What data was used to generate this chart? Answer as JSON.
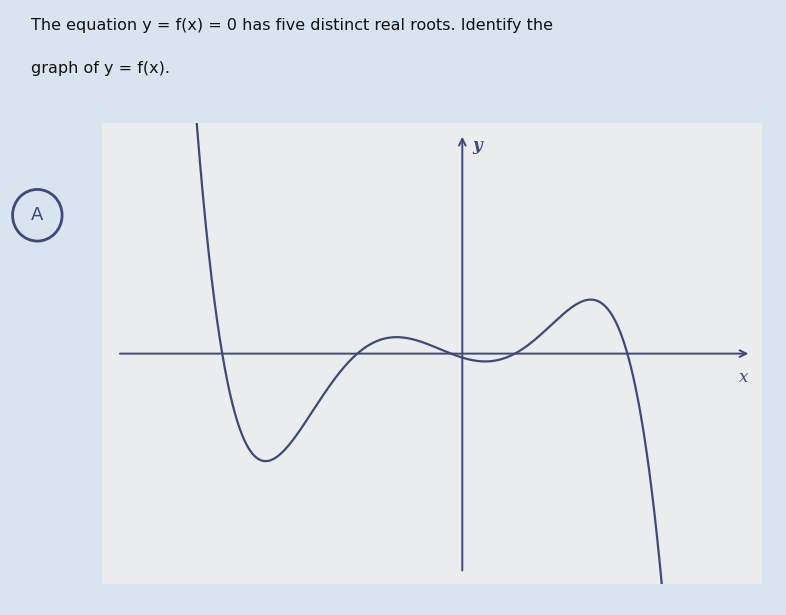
{
  "title_line1": "The equation ",
  "title_math": "y = f(x) = 0",
  "title_line1b": " has five distinct real roots. Identify the",
  "title_line2": "graph of ",
  "title_math2": "y = f(x)",
  "title_line2b": ".",
  "label_A": "A",
  "xlabel": "x",
  "ylabel": "y",
  "curve_color": "#3d4a7a",
  "axis_color": "#3d4a7a",
  "bg_color": "#d8e4f0",
  "plot_bg_color": "#eaecee",
  "title_color": "#111111",
  "figsize": [
    7.86,
    6.15
  ],
  "dpi": 100,
  "roots": [
    -3.2,
    -1.4,
    -0.15,
    0.7,
    2.2
  ],
  "x_start": -4.3,
  "x_end": 3.5,
  "y_scale": -0.07,
  "xlim": [
    -4.8,
    4.0
  ],
  "ylim": [
    -4.2,
    4.2
  ]
}
